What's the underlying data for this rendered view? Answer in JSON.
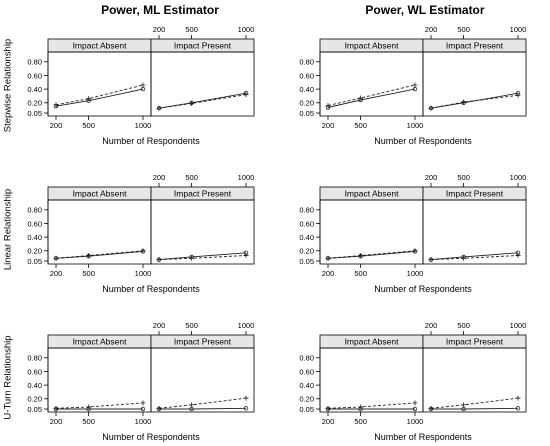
{
  "figure": {
    "col_titles": [
      "Power, ML Estimator",
      "Power, WL Estimator"
    ],
    "row_labels": [
      "Stepwise Relationship",
      "Linear Relationship",
      "U-Turn Relationship"
    ]
  },
  "chart_data": [
    {
      "type": "line",
      "estimator": "ML",
      "relationship": "Stepwise Relationship",
      "strips": [
        "Impact Absent",
        "Impact Present"
      ],
      "x_values": [
        200,
        500,
        1000
      ],
      "x_ticklabels": [
        "200",
        "500",
        "1000"
      ],
      "xlabel": "Number of Respondents",
      "ylim": [
        0.05,
        0.9
      ],
      "yticks": [
        0.05,
        0.2,
        0.4,
        0.6,
        0.8
      ],
      "yticklabels": [
        "0.05",
        "0.20",
        "0.40",
        "0.60",
        "0.80"
      ],
      "panels": [
        {
          "strip": "Impact Absent",
          "series": [
            {
              "style": "solid",
              "values": [
                0.15,
                0.23,
                0.4
              ]
            },
            {
              "style": "dashed",
              "values": [
                0.17,
                0.26,
                0.46
              ]
            }
          ]
        },
        {
          "strip": "Impact Present",
          "series": [
            {
              "style": "solid",
              "values": [
                0.12,
                0.2,
                0.34
              ]
            },
            {
              "style": "dashed",
              "values": [
                0.12,
                0.19,
                0.32
              ]
            }
          ]
        }
      ]
    },
    {
      "type": "line",
      "estimator": "WL",
      "relationship": "Stepwise Relationship",
      "strips": [
        "Impact Absent",
        "Impact Present"
      ],
      "x_values": [
        200,
        500,
        1000
      ],
      "x_ticklabels": [
        "200",
        "500",
        "1000"
      ],
      "xlabel": "Number of Respondents",
      "ylim": [
        0.05,
        0.9
      ],
      "yticks": [
        0.05,
        0.2,
        0.4,
        0.6,
        0.8
      ],
      "yticklabels": [
        "0.05",
        "0.20",
        "0.40",
        "0.60",
        "0.80"
      ],
      "panels": [
        {
          "strip": "Impact Absent",
          "series": [
            {
              "style": "solid",
              "values": [
                0.13,
                0.24,
                0.4
              ]
            },
            {
              "style": "dashed",
              "values": [
                0.16,
                0.27,
                0.46
              ]
            }
          ]
        },
        {
          "strip": "Impact Present",
          "series": [
            {
              "style": "solid",
              "values": [
                0.12,
                0.2,
                0.34
              ]
            },
            {
              "style": "dashed",
              "values": [
                0.12,
                0.21,
                0.31
              ]
            }
          ]
        }
      ]
    },
    {
      "type": "line",
      "estimator": "ML",
      "relationship": "Linear Relationship",
      "strips": [
        "Impact Absent",
        "Impact Present"
      ],
      "x_values": [
        200,
        500,
        1000
      ],
      "x_ticklabels": [
        "200",
        "500",
        "1000"
      ],
      "xlabel": "Number of Respondents",
      "ylim": [
        0.05,
        0.9
      ],
      "yticks": [
        0.05,
        0.2,
        0.4,
        0.6,
        0.8
      ],
      "yticklabels": [
        "0.05",
        "0.20",
        "0.40",
        "0.60",
        "0.80"
      ],
      "panels": [
        {
          "strip": "Impact Absent",
          "series": [
            {
              "style": "solid",
              "values": [
                0.09,
                0.12,
                0.19
              ]
            },
            {
              "style": "dashed",
              "values": [
                0.09,
                0.13,
                0.2
              ]
            }
          ]
        },
        {
          "strip": "Impact Present",
          "series": [
            {
              "style": "solid",
              "values": [
                0.07,
                0.11,
                0.17
              ]
            },
            {
              "style": "dashed",
              "values": [
                0.07,
                0.09,
                0.13
              ]
            }
          ]
        }
      ]
    },
    {
      "type": "line",
      "estimator": "WL",
      "relationship": "Linear Relationship",
      "strips": [
        "Impact Absent",
        "Impact Present"
      ],
      "x_values": [
        200,
        500,
        1000
      ],
      "x_ticklabels": [
        "200",
        "500",
        "1000"
      ],
      "xlabel": "Number of Respondents",
      "ylim": [
        0.05,
        0.9
      ],
      "yticks": [
        0.05,
        0.2,
        0.4,
        0.6,
        0.8
      ],
      "yticklabels": [
        "0.05",
        "0.20",
        "0.40",
        "0.60",
        "0.80"
      ],
      "panels": [
        {
          "strip": "Impact Absent",
          "series": [
            {
              "style": "solid",
              "values": [
                0.09,
                0.12,
                0.19
              ]
            },
            {
              "style": "dashed",
              "values": [
                0.09,
                0.13,
                0.2
              ]
            }
          ]
        },
        {
          "strip": "Impact Present",
          "series": [
            {
              "style": "solid",
              "values": [
                0.07,
                0.11,
                0.17
              ]
            },
            {
              "style": "dashed",
              "values": [
                0.07,
                0.09,
                0.13
              ]
            }
          ]
        }
      ]
    },
    {
      "type": "line",
      "estimator": "ML",
      "relationship": "U-Turn Relationship",
      "strips": [
        "Impact Absent",
        "Impact Present"
      ],
      "x_values": [
        200,
        500,
        1000
      ],
      "x_ticklabels": [
        "200",
        "500",
        "1000"
      ],
      "xlabel": "Number of Respondents",
      "ylim": [
        0.05,
        0.9
      ],
      "yticks": [
        0.05,
        0.2,
        0.4,
        0.6,
        0.8
      ],
      "yticklabels": [
        "0.05",
        "0.20",
        "0.40",
        "0.60",
        "0.80"
      ],
      "panels": [
        {
          "strip": "Impact Absent",
          "series": [
            {
              "style": "solid",
              "values": [
                0.05,
                0.05,
                0.05
              ]
            },
            {
              "style": "dashed",
              "values": [
                0.06,
                0.08,
                0.14
              ]
            }
          ]
        },
        {
          "strip": "Impact Present",
          "series": [
            {
              "style": "solid",
              "values": [
                0.05,
                0.05,
                0.06
              ]
            },
            {
              "style": "dashed",
              "values": [
                0.06,
                0.11,
                0.21
              ]
            }
          ]
        }
      ]
    },
    {
      "type": "line",
      "estimator": "WL",
      "relationship": "U-Turn Relationship",
      "strips": [
        "Impact Absent",
        "Impact Present"
      ],
      "x_values": [
        200,
        500,
        1000
      ],
      "x_ticklabels": [
        "200",
        "500",
        "1000"
      ],
      "xlabel": "Number of Respondents",
      "ylim": [
        0.05,
        0.9
      ],
      "yticks": [
        0.05,
        0.2,
        0.4,
        0.6,
        0.8
      ],
      "yticklabels": [
        "0.05",
        "0.20",
        "0.40",
        "0.60",
        "0.80"
      ],
      "panels": [
        {
          "strip": "Impact Absent",
          "series": [
            {
              "style": "solid",
              "values": [
                0.05,
                0.05,
                0.05
              ]
            },
            {
              "style": "dashed",
              "values": [
                0.06,
                0.08,
                0.14
              ]
            }
          ]
        },
        {
          "strip": "Impact Present",
          "series": [
            {
              "style": "solid",
              "values": [
                0.05,
                0.05,
                0.06
              ]
            },
            {
              "style": "dashed",
              "values": [
                0.06,
                0.11,
                0.21
              ]
            }
          ]
        }
      ]
    }
  ]
}
